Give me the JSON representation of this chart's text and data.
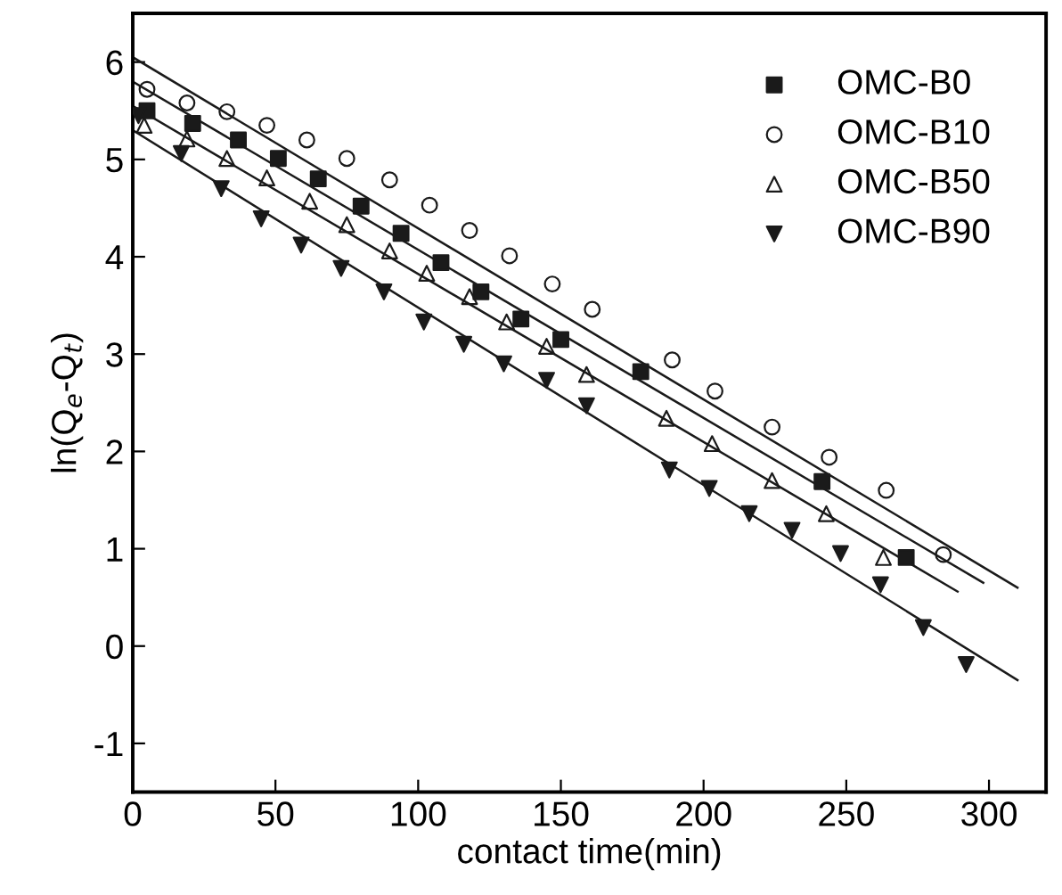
{
  "chart_data": {
    "type": "scatter",
    "xlabel": "contact time(min)",
    "ylabel": "ln(Q$_{e}$-Q$_{t}$)",
    "xlim": [
      0,
      320
    ],
    "ylim": [
      -1.5,
      6.5
    ],
    "xticks": [
      0,
      50,
      100,
      150,
      200,
      250,
      300
    ],
    "yticks": [
      -1,
      0,
      1,
      2,
      3,
      4,
      5,
      6
    ],
    "grid": false,
    "legend": "top right",
    "series": [
      {
        "name": "OMC-B0",
        "color": "#1a1a1a",
        "marker": "square",
        "x": [
          5,
          21,
          37,
          51,
          65,
          80,
          94,
          108,
          122,
          136,
          150,
          178,
          241.5,
          271
        ],
        "values": [
          5.5,
          5.37,
          5.2,
          5.01,
          4.8,
          4.52,
          4.24,
          3.94,
          3.64,
          3.36,
          3.15,
          2.82,
          1.69,
          0.91
        ]
      },
      {
        "name": "OMC-B10",
        "color": "#1a1a1a",
        "marker": "circle",
        "x": [
          5,
          19,
          33,
          47,
          61,
          75,
          90,
          104,
          118,
          132,
          147,
          161,
          189,
          204,
          224,
          244,
          264,
          284
        ],
        "values": [
          5.72,
          5.58,
          5.49,
          5.35,
          5.2,
          5.01,
          4.79,
          4.53,
          4.27,
          4.01,
          3.72,
          3.46,
          2.94,
          2.62,
          2.25,
          1.94,
          1.6,
          0.94
        ]
      },
      {
        "name": "OMC-B50",
        "color": "#1a1a1a",
        "marker": "triangle",
        "x": [
          4,
          19,
          33,
          47,
          62,
          75,
          90,
          103,
          118,
          131,
          145,
          159,
          187,
          203,
          224,
          243,
          263
        ],
        "values": [
          5.35,
          5.21,
          5.01,
          4.81,
          4.57,
          4.33,
          4.06,
          3.83,
          3.59,
          3.33,
          3.08,
          2.79,
          2.34,
          2.08,
          1.7,
          1.36,
          0.91
        ]
      },
      {
        "name": "OMC-B90",
        "color": "#1a1a1a",
        "marker": "triangle-down",
        "x": [
          2,
          17,
          31,
          45,
          59,
          73,
          88,
          102,
          116,
          130,
          145,
          159,
          188,
          202,
          216,
          231,
          248,
          262,
          277,
          292
        ],
        "values": [
          5.45,
          5.06,
          4.7,
          4.39,
          4.12,
          3.88,
          3.64,
          3.33,
          3.1,
          2.9,
          2.73,
          2.47,
          1.81,
          1.62,
          1.36,
          1.19,
          0.95,
          0.63,
          0.19,
          -0.19
        ]
      },
      {
        "type": "line",
        "color": "#1a1a1a",
        "x": [
          0,
          310
        ],
        "values": [
          6.05,
          0.6
        ]
      },
      {
        "type": "line",
        "color": "#1a1a1a",
        "x": [
          0,
          298
        ],
        "values": [
          5.8,
          0.65
        ]
      },
      {
        "type": "line",
        "color": "#1a1a1a",
        "x": [
          0,
          289
        ],
        "values": [
          5.55,
          0.56
        ]
      },
      {
        "type": "line",
        "color": "#1a1a1a",
        "x": [
          0,
          310
        ],
        "values": [
          5.3,
          -0.35
        ]
      }
    ]
  }
}
